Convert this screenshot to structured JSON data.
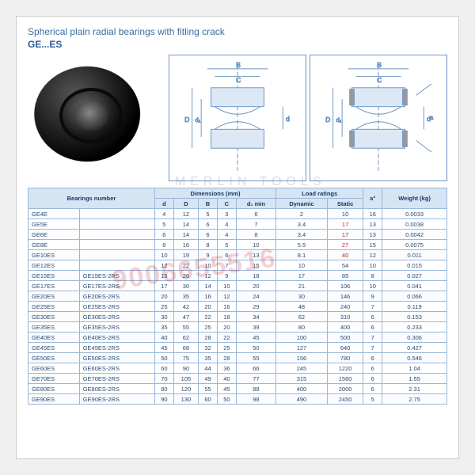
{
  "title": "Spherical plain radial bearings with fitling crack",
  "series": "GE...ES",
  "watermark": "9006655516",
  "logo_watermark": "MERLIN TOOLS",
  "colors": {
    "heading": "#3a6ea5",
    "series": "#2a5a95",
    "table_border": "#9ab8d8",
    "table_header_bg": "#d6e5f4",
    "table_text": "#2a4a72",
    "highlight": "#c02020",
    "diagram_line": "#6a95c5"
  },
  "table": {
    "group_headers": {
      "bearings": "Bearings number",
      "dimensions": "Dimensions (mm)",
      "load": "Load ratings",
      "alpha": "a°",
      "weight": "Weight (kg)"
    },
    "sub_headers": {
      "d": "d",
      "D": "D",
      "B": "B",
      "C": "C",
      "d1min": "d₁ min",
      "dynamic": "Dynamic",
      "static": "Static"
    },
    "rows": [
      {
        "b1": "GE4E",
        "b2": "",
        "d": 4,
        "D": 12,
        "B": 5,
        "C": 3,
        "d1": 6,
        "dyn": 2,
        "sta": 10,
        "a": 16,
        "w": "0.0033"
      },
      {
        "b1": "GE5E",
        "b2": "",
        "d": 5,
        "D": 14,
        "B": 6,
        "C": 4,
        "d1": 7,
        "dyn": 3.4,
        "sta": 17,
        "a": 13,
        "w": "0.0038",
        "hl": [
          "sta"
        ]
      },
      {
        "b1": "GE6E",
        "b2": "",
        "d": 6,
        "D": 14,
        "B": 6,
        "C": 4,
        "d1": 8,
        "dyn": 3.4,
        "sta": 17,
        "a": 13,
        "w": "0.0042",
        "hl": [
          "sta"
        ]
      },
      {
        "b1": "GE8E",
        "b2": "",
        "d": 8,
        "D": 16,
        "B": 8,
        "C": 5,
        "d1": 10,
        "dyn": 5.5,
        "sta": 27,
        "a": 15,
        "w": "0.0075",
        "hl": [
          "sta"
        ]
      },
      {
        "b1": "GE10ES",
        "b2": "",
        "d": 10,
        "D": 19,
        "B": 9,
        "C": 6,
        "d1": 13,
        "dyn": 8.1,
        "sta": 40,
        "a": 12,
        "w": "0.011",
        "hl": [
          "sta"
        ]
      },
      {
        "b1": "GE12ES",
        "b2": "",
        "d": 12,
        "D": 22,
        "B": 10,
        "C": 7,
        "d1": 15,
        "dyn": 10,
        "sta": 54,
        "a": 10,
        "w": "0.015"
      },
      {
        "b1": "GE15ES",
        "b2": "GE15ES-2RS",
        "d": 15,
        "D": 26,
        "B": 12,
        "C": 9,
        "d1": 18,
        "dyn": 17,
        "sta": 85,
        "a": 8,
        "w": "0.027"
      },
      {
        "b1": "GE17ES",
        "b2": "GE17ES-2RS",
        "d": 17,
        "D": 30,
        "B": 14,
        "C": 10,
        "d1": 20,
        "dyn": 21,
        "sta": 106,
        "a": 10,
        "w": "0.041"
      },
      {
        "b1": "GE20ES",
        "b2": "GE20ES-2RS",
        "d": 20,
        "D": 35,
        "B": 16,
        "C": 12,
        "d1": 24,
        "dyn": 30,
        "sta": 146,
        "a": 9,
        "w": "0.066"
      },
      {
        "b1": "GE25ES",
        "b2": "GE25ES-2RS",
        "d": 25,
        "D": 42,
        "B": 20,
        "C": 16,
        "d1": 29,
        "dyn": 48,
        "sta": 240,
        "a": 7,
        "w": "0.119"
      },
      {
        "b1": "GE30ES",
        "b2": "GE30ES-2RS",
        "d": 30,
        "D": 47,
        "B": 22,
        "C": 18,
        "d1": 34,
        "dyn": 62,
        "sta": 310,
        "a": 6,
        "w": "0.153"
      },
      {
        "b1": "GE35ES",
        "b2": "GE35ES-2RS",
        "d": 35,
        "D": 55,
        "B": 25,
        "C": 20,
        "d1": 39,
        "dyn": 80,
        "sta": 400,
        "a": 6,
        "w": "0.233"
      },
      {
        "b1": "GE40ES",
        "b2": "GE40ES-2RS",
        "d": 40,
        "D": 62,
        "B": 28,
        "C": 22,
        "d1": 45,
        "dyn": 100,
        "sta": 500,
        "a": 7,
        "w": "0.306"
      },
      {
        "b1": "GE45ES",
        "b2": "GE45ES-2RS",
        "d": 45,
        "D": 68,
        "B": 32,
        "C": 25,
        "d1": 50,
        "dyn": 127,
        "sta": 640,
        "a": 7,
        "w": "0.427"
      },
      {
        "b1": "GE50ES",
        "b2": "GE50ES-2RS",
        "d": 50,
        "D": 75,
        "B": 35,
        "C": 28,
        "d1": 55,
        "dyn": 156,
        "sta": 780,
        "a": 6,
        "w": "0.546"
      },
      {
        "b1": "GE60ES",
        "b2": "GE60ES-2RS",
        "d": 60,
        "D": 90,
        "B": 44,
        "C": 36,
        "d1": 66,
        "dyn": 245,
        "sta": 1220,
        "a": 6,
        "w": "1.04"
      },
      {
        "b1": "GE70ES",
        "b2": "GE70ES-2RS",
        "d": 70,
        "D": 105,
        "B": 49,
        "C": 40,
        "d1": 77,
        "dyn": 315,
        "sta": 1560,
        "a": 6,
        "w": "1.55"
      },
      {
        "b1": "GE80ES",
        "b2": "GE80ES-2RS",
        "d": 80,
        "D": 120,
        "B": 55,
        "C": 45,
        "d1": 88,
        "dyn": 400,
        "sta": 2000,
        "a": 6,
        "w": "2.31"
      },
      {
        "b1": "GE90ES",
        "b2": "GE90ES-2RS",
        "d": 90,
        "D": 130,
        "B": 60,
        "C": 50,
        "d1": 98,
        "dyn": 490,
        "sta": 2450,
        "a": 5,
        "w": "2.75"
      }
    ]
  }
}
